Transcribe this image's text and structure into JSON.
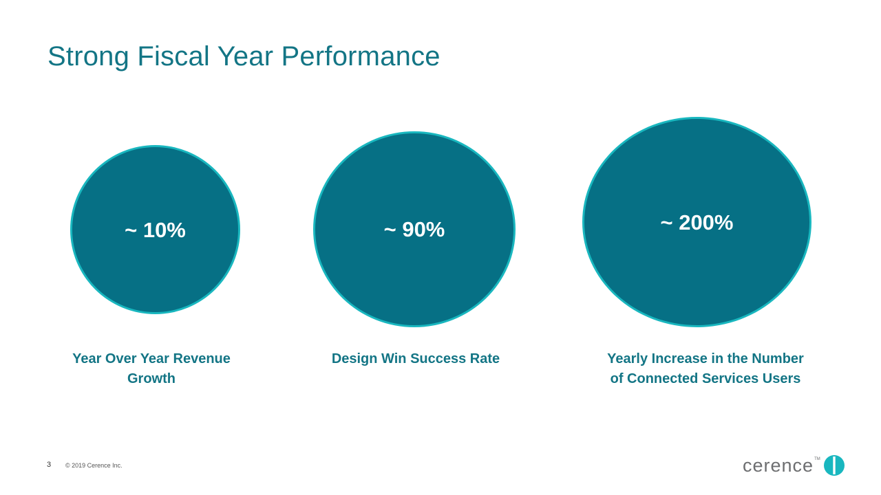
{
  "slide": {
    "title": "Strong Fiscal Year Performance"
  },
  "colors": {
    "title": "#137585",
    "circle_fill": "#067085",
    "circle_border": "#19b7bf",
    "caption": "#137585",
    "logo_gray": "#6d6e70",
    "logo_teal": "#19b7bf"
  },
  "metrics": [
    {
      "value": "~ 10%",
      "caption_line1": "Year Over Year Revenue",
      "caption_line2": "Growth"
    },
    {
      "value": "~ 90%",
      "caption_line1": "Design Win Success Rate",
      "caption_line2": ""
    },
    {
      "value": "~ 200%",
      "caption_line1": "Yearly Increase in the Number",
      "caption_line2": "of Connected Services Users"
    }
  ],
  "footer": {
    "page_number": "3",
    "copyright": "© 2019 Cerence Inc."
  },
  "logo": {
    "wordmark": "cerence",
    "tm": "TM",
    "icon": "cerence-logo-icon"
  }
}
